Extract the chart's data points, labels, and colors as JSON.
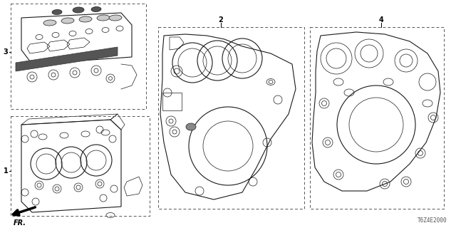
{
  "background_color": "#ffffff",
  "diagram_code": "T6Z4E2000",
  "fr_label": "FR.",
  "line_color": "#1a1a1a",
  "dashed_color": "#555555",
  "lw_thin": 0.5,
  "lw_med": 0.8,
  "lw_thick": 1.2,
  "fig_w": 6.4,
  "fig_h": 3.2,
  "dpi": 100
}
